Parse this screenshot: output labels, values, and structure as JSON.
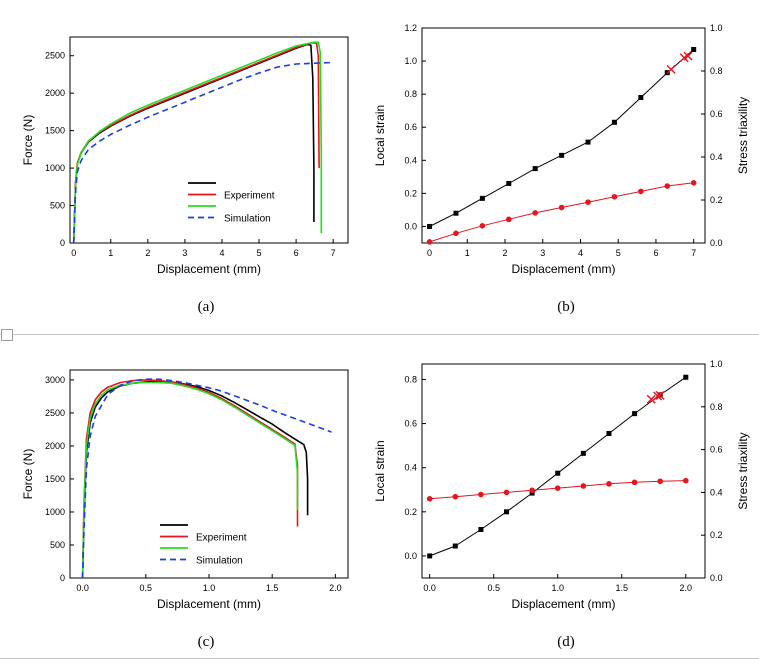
{
  "colors": {
    "experiment_black": "#000000",
    "experiment_red": "#e8141e",
    "experiment_green": "#22dd22",
    "simulation": "#1a3ee6",
    "axis": "#000000",
    "point_black": "#000000",
    "point_red": "#e8141e"
  },
  "chart_data": [
    {
      "id": "a",
      "caption": "(a)",
      "type": "line",
      "xlabel": "Displacement (mm)",
      "ylabel": "Force (N)",
      "xlim": [
        -0.1,
        7.4
      ],
      "ylim": [
        0,
        2750
      ],
      "xticks": [
        "0",
        "1",
        "2",
        "3",
        "4",
        "5",
        "6",
        "7"
      ],
      "yticks": [
        "0",
        "500",
        "1000",
        "1500",
        "2000",
        "2500"
      ],
      "legend": {
        "placement": "lower-right",
        "entries": [
          "",
          "Experiment",
          "",
          "Simulation"
        ]
      },
      "series": [
        {
          "style": "solid",
          "color_key": "experiment_black",
          "x": [
            0,
            0.05,
            0.1,
            0.2,
            0.4,
            0.7,
            1.0,
            1.5,
            2.0,
            2.5,
            3.0,
            3.5,
            4.0,
            4.5,
            5.0,
            5.5,
            6.0,
            6.3,
            6.4,
            6.45,
            6.48,
            6.48
          ],
          "y": [
            0,
            800,
            1060,
            1200,
            1350,
            1470,
            1560,
            1690,
            1800,
            1900,
            2000,
            2100,
            2200,
            2300,
            2400,
            2500,
            2600,
            2650,
            2640,
            2200,
            1000,
            280
          ]
        },
        {
          "name": "Experiment",
          "style": "solid",
          "color_key": "experiment_red",
          "x": [
            0,
            0.05,
            0.1,
            0.2,
            0.4,
            0.7,
            1.0,
            1.5,
            2.0,
            2.5,
            3.0,
            3.5,
            4.0,
            4.5,
            5.0,
            5.5,
            6.0,
            6.4,
            6.55,
            6.6,
            6.62
          ],
          "y": [
            0,
            820,
            1070,
            1210,
            1360,
            1480,
            1570,
            1700,
            1810,
            1910,
            2010,
            2110,
            2210,
            2310,
            2410,
            2510,
            2610,
            2670,
            2670,
            2500,
            1000
          ]
        },
        {
          "style": "solid",
          "color_key": "experiment_green",
          "x": [
            0,
            0.05,
            0.1,
            0.2,
            0.4,
            0.7,
            1.0,
            1.5,
            2.0,
            2.5,
            3.0,
            3.5,
            4.0,
            4.5,
            5.0,
            5.5,
            6.0,
            6.5,
            6.6,
            6.65,
            6.68,
            6.68
          ],
          "y": [
            0,
            780,
            1050,
            1200,
            1360,
            1490,
            1590,
            1730,
            1840,
            1940,
            2040,
            2140,
            2240,
            2340,
            2440,
            2540,
            2630,
            2680,
            2680,
            2550,
            1200,
            130
          ]
        },
        {
          "name": "Simulation",
          "style": "dashed",
          "color_key": "simulation",
          "x": [
            0,
            0.05,
            0.1,
            0.2,
            0.4,
            0.7,
            1.0,
            1.5,
            2.0,
            2.5,
            3.0,
            3.5,
            4.0,
            4.5,
            5.0,
            5.5,
            6.0,
            6.5,
            7.0
          ],
          "y": [
            0,
            700,
            950,
            1100,
            1250,
            1360,
            1450,
            1570,
            1680,
            1780,
            1880,
            1980,
            2080,
            2180,
            2270,
            2350,
            2390,
            2400,
            2410
          ]
        }
      ]
    },
    {
      "id": "b",
      "caption": "(b)",
      "type": "line",
      "xlabel": "Displacement (mm)",
      "ylabel": "Local strain",
      "ylabel_right": "Stress triaxility",
      "xlim": [
        -0.2,
        7.3
      ],
      "ylim": [
        -0.1,
        1.2
      ],
      "ylim_right": [
        0,
        1.0
      ],
      "xticks": [
        "0",
        "1",
        "2",
        "3",
        "4",
        "5",
        "6",
        "7"
      ],
      "yticks": [
        "0.0",
        "0.2",
        "0.4",
        "0.6",
        "0.8",
        "1.0",
        "1.2"
      ],
      "yticks_right": [
        "0.0",
        "0.2",
        "0.4",
        "0.6",
        "0.8",
        "1.0"
      ],
      "series": [
        {
          "marker": "square",
          "axis": "left",
          "color_key": "point_black",
          "x": [
            0,
            0.7,
            1.4,
            2.1,
            2.8,
            3.5,
            4.2,
            4.9,
            5.6,
            6.3,
            7.0
          ],
          "y": [
            0.0,
            0.08,
            0.17,
            0.26,
            0.35,
            0.43,
            0.51,
            0.63,
            0.78,
            0.93,
            1.07
          ]
        },
        {
          "marker": "circle",
          "axis": "right",
          "color_key": "point_red",
          "x": [
            0,
            0.7,
            1.4,
            2.1,
            2.8,
            3.5,
            4.2,
            4.9,
            5.6,
            6.3,
            7.0
          ],
          "y": [
            0.005,
            0.045,
            0.08,
            0.11,
            0.14,
            0.165,
            0.19,
            0.215,
            0.24,
            0.265,
            0.28
          ]
        },
        {
          "marker": "cross",
          "axis": "left",
          "color_key": "point_red",
          "x": [
            6.4,
            6.75,
            6.85
          ],
          "y": [
            0.95,
            1.02,
            1.03
          ]
        }
      ]
    },
    {
      "id": "c",
      "caption": "(c)",
      "type": "line",
      "xlabel": "Displacement (mm)",
      "ylabel": "Force (N)",
      "xlim": [
        -0.1,
        2.1
      ],
      "ylim": [
        0,
        3150
      ],
      "xticks": [
        "0.0",
        "0.5",
        "1.0",
        "1.5",
        "2.0"
      ],
      "yticks": [
        "0",
        "500",
        "1000",
        "1500",
        "2000",
        "2500",
        "3000"
      ],
      "legend": {
        "placement": "lower-center",
        "entries": [
          "",
          "Experiment",
          "",
          "Simulation"
        ]
      },
      "series": [
        {
          "style": "solid",
          "color_key": "experiment_black",
          "x": [
            0,
            0.01,
            0.03,
            0.06,
            0.1,
            0.15,
            0.2,
            0.3,
            0.4,
            0.5,
            0.6,
            0.7,
            0.8,
            0.9,
            1.0,
            1.1,
            1.2,
            1.3,
            1.4,
            1.5,
            1.6,
            1.7,
            1.75,
            1.77,
            1.78,
            1.78
          ],
          "y": [
            0,
            900,
            1900,
            2350,
            2590,
            2730,
            2820,
            2910,
            2950,
            2970,
            2980,
            2970,
            2940,
            2900,
            2840,
            2760,
            2660,
            2550,
            2440,
            2330,
            2200,
            2080,
            2020,
            1900,
            1500,
            950
          ]
        },
        {
          "name": "Experiment",
          "style": "solid",
          "color_key": "experiment_red",
          "x": [
            0,
            0.01,
            0.03,
            0.06,
            0.1,
            0.15,
            0.2,
            0.3,
            0.4,
            0.5,
            0.6,
            0.7,
            0.8,
            0.9,
            1.0,
            1.1,
            1.2,
            1.3,
            1.4,
            1.5,
            1.6,
            1.68,
            1.7,
            1.7
          ],
          "y": [
            0,
            1100,
            2100,
            2500,
            2700,
            2820,
            2890,
            2960,
            2990,
            3000,
            2990,
            2970,
            2930,
            2880,
            2810,
            2720,
            2610,
            2490,
            2370,
            2250,
            2130,
            2030,
            1700,
            780
          ]
        },
        {
          "style": "solid",
          "color_key": "experiment_green",
          "x": [
            0,
            0.01,
            0.03,
            0.06,
            0.1,
            0.15,
            0.2,
            0.3,
            0.4,
            0.5,
            0.6,
            0.7,
            0.8,
            0.9,
            1.0,
            1.1,
            1.2,
            1.3,
            1.4,
            1.5,
            1.6,
            1.68,
            1.7,
            1.7
          ],
          "y": [
            0,
            1000,
            2000,
            2420,
            2640,
            2770,
            2850,
            2920,
            2950,
            2960,
            2960,
            2950,
            2910,
            2860,
            2790,
            2700,
            2590,
            2470,
            2350,
            2230,
            2110,
            2010,
            1600,
            1030
          ]
        },
        {
          "name": "Simulation",
          "style": "dashed",
          "color_key": "simulation",
          "x": [
            0,
            0.01,
            0.03,
            0.06,
            0.1,
            0.2,
            0.3,
            0.4,
            0.5,
            0.6,
            0.7,
            0.8,
            0.9,
            1.0,
            1.1,
            1.2,
            1.3,
            1.4,
            1.5,
            1.6,
            1.7,
            1.8,
            1.9,
            1.97
          ],
          "y": [
            0,
            700,
            1650,
            2150,
            2450,
            2780,
            2920,
            2990,
            3010,
            3010,
            2990,
            2960,
            2920,
            2880,
            2830,
            2760,
            2690,
            2620,
            2540,
            2470,
            2400,
            2330,
            2260,
            2210
          ]
        }
      ]
    },
    {
      "id": "d",
      "caption": "(d)",
      "type": "line",
      "xlabel": "Displacement (mm)",
      "ylabel": "Local strain",
      "ylabel_right": "Stress triaxility",
      "xlim": [
        -0.06,
        2.15
      ],
      "ylim": [
        -0.1,
        0.87
      ],
      "ylim_right": [
        0,
        1.0
      ],
      "xticks": [
        "0.0",
        "0.5",
        "1.0",
        "1.5",
        "2.0"
      ],
      "yticks": [
        "0.0",
        "0.2",
        "0.4",
        "0.6",
        "0.8"
      ],
      "yticks_right": [
        "0.0",
        "0.2",
        "0.4",
        "0.6",
        "0.8",
        "1.0"
      ],
      "series": [
        {
          "marker": "square",
          "axis": "left",
          "color_key": "point_black",
          "x": [
            0,
            0.2,
            0.4,
            0.6,
            0.8,
            1.0,
            1.2,
            1.4,
            1.6,
            1.8,
            2.0
          ],
          "y": [
            0.0,
            0.045,
            0.12,
            0.2,
            0.285,
            0.375,
            0.465,
            0.555,
            0.645,
            0.73,
            0.81
          ]
        },
        {
          "marker": "circle",
          "axis": "right",
          "color_key": "point_red",
          "x": [
            0,
            0.2,
            0.4,
            0.6,
            0.8,
            1.0,
            1.2,
            1.4,
            1.6,
            1.8,
            2.0
          ],
          "y": [
            0.37,
            0.38,
            0.39,
            0.4,
            0.41,
            0.42,
            0.43,
            0.44,
            0.447,
            0.452,
            0.455
          ]
        },
        {
          "marker": "cross",
          "axis": "left",
          "color_key": "point_red",
          "x": [
            1.73,
            1.78,
            1.8
          ],
          "y": [
            0.71,
            0.725,
            0.728
          ]
        }
      ]
    }
  ]
}
